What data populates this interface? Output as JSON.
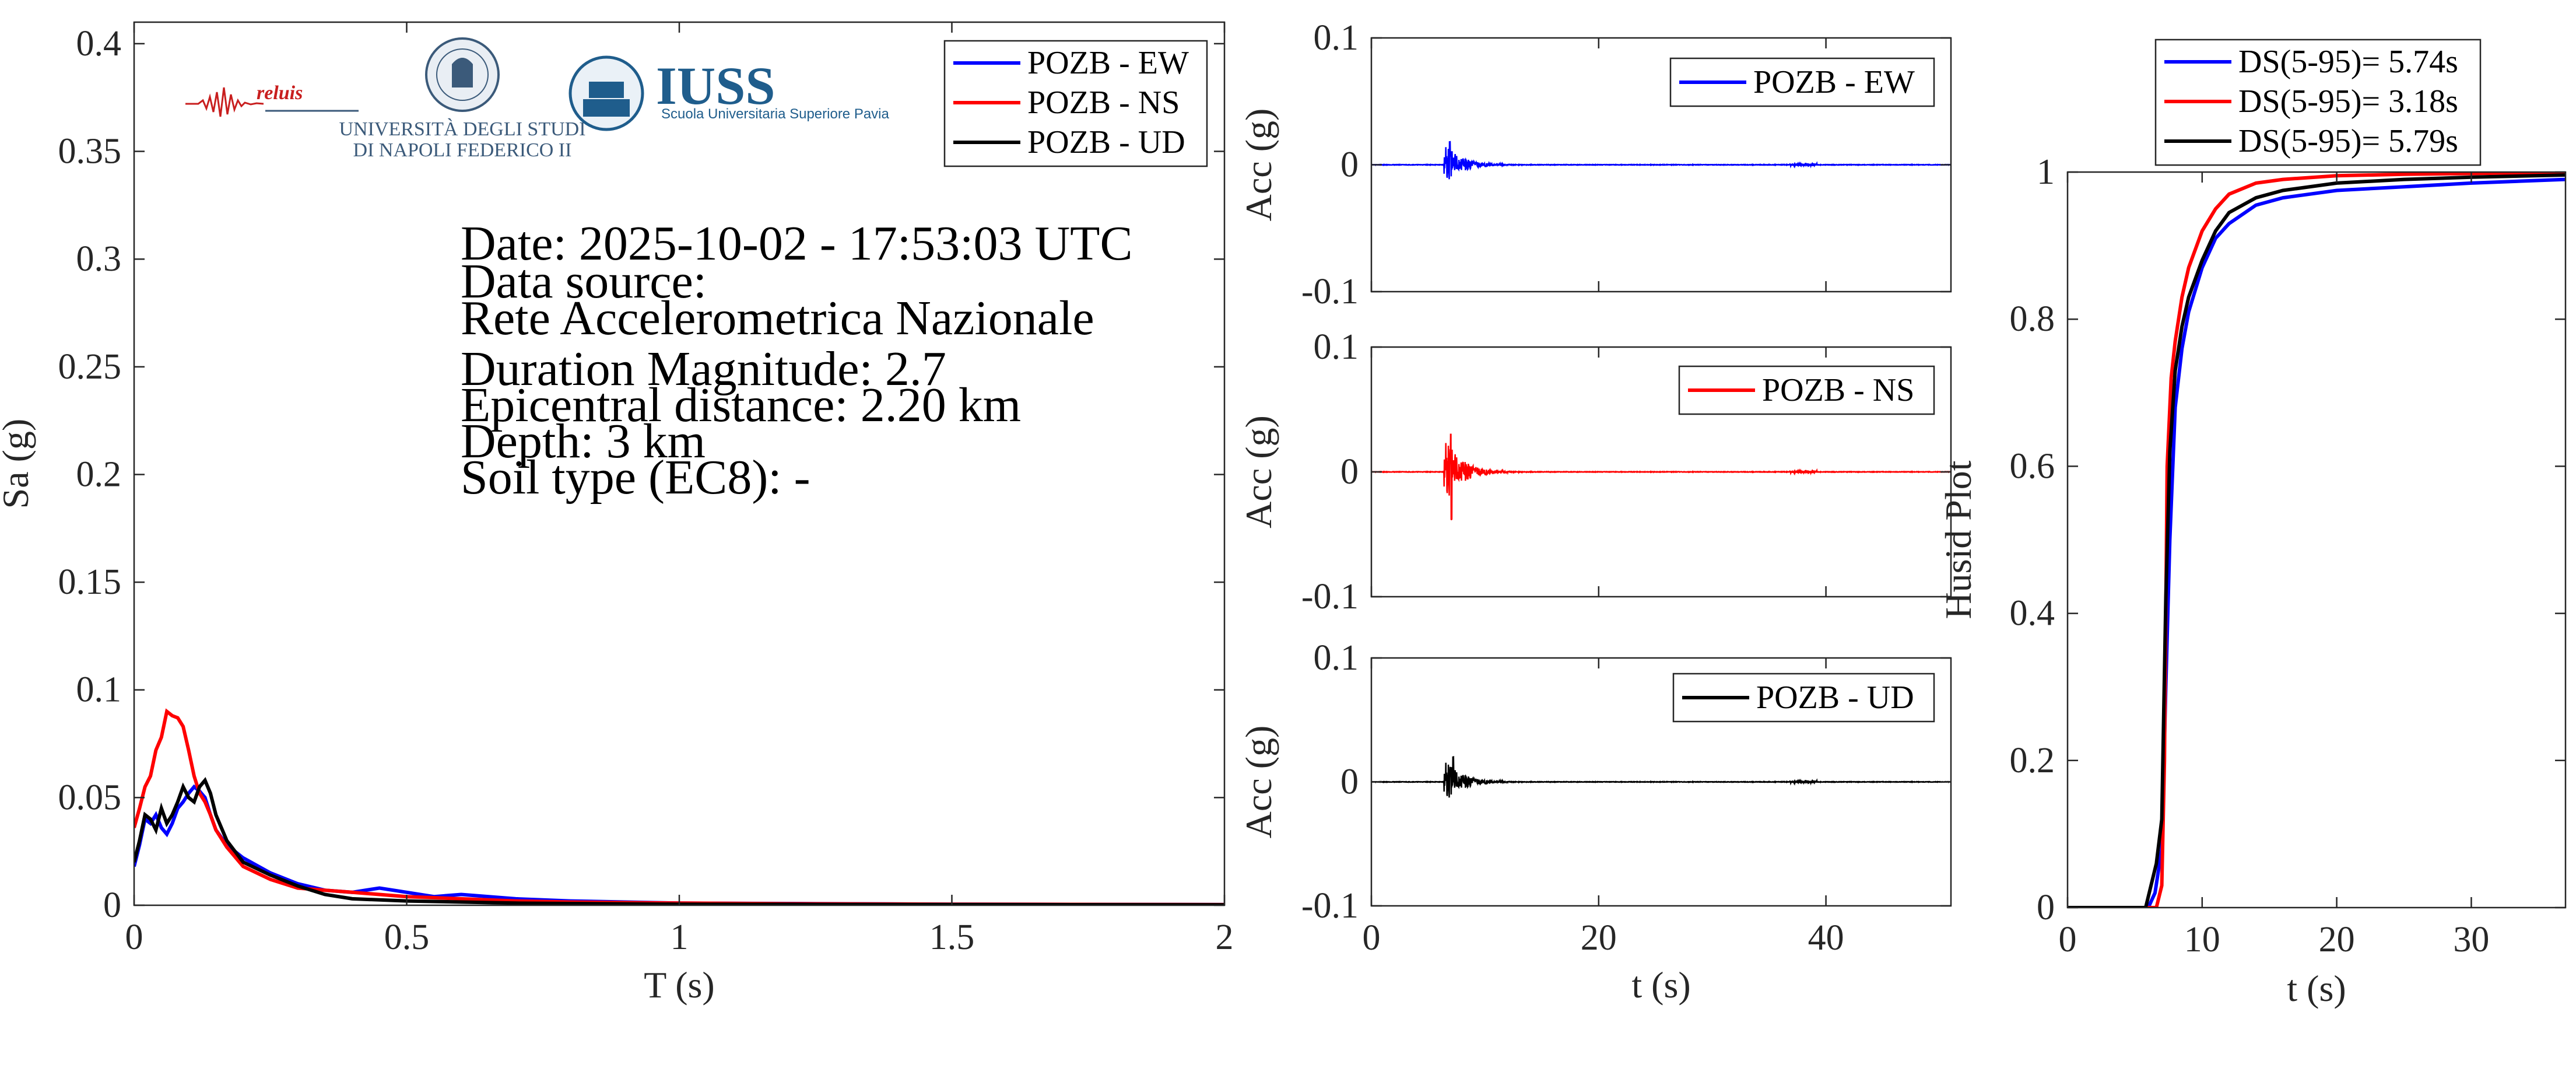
{
  "logos": {
    "reluis": "reluis",
    "unina_line1": "UNIVERSITÀ DEGLI STUDI",
    "unina_line2": "DI NAPOLI FEDERICO II",
    "iuss": "IUSS",
    "iuss_sub": "Scuola Universitaria Superiore Pavia"
  },
  "info": {
    "date": "Date: 2025-10-02 - 17:53:03 UTC",
    "source_label": "Data source:",
    "source": "Rete Accelerometrica Nazionale",
    "magnitude": "Duration Magnitude: 2.7",
    "distance": "Epicentral distance: 2.20 km",
    "depth": "Depth: 3 km",
    "soil": "Soil type (EC8): -"
  },
  "colors": {
    "ew": "#0000ff",
    "ns": "#ff0000",
    "ud": "#000000"
  },
  "chart_data": [
    {
      "id": "spectrum",
      "type": "line",
      "xlabel": "T (s)",
      "ylabel": "Sa (g)",
      "xlim": [
        0,
        2
      ],
      "ylim": [
        0,
        0.41
      ],
      "xticks": [
        0,
        0.5,
        1,
        1.5,
        2
      ],
      "xtick_labels": [
        "0",
        "0.5",
        "1",
        "1.5",
        "2"
      ],
      "yticks": [
        0,
        0.05,
        0.1,
        0.15,
        0.2,
        0.25,
        0.3,
        0.35,
        0.4
      ],
      "ytick_labels": [
        "0",
        "0.05",
        "0.1",
        "0.15",
        "0.2",
        "0.25",
        "0.3",
        "0.35",
        "0.4"
      ],
      "legend_position": "top-right",
      "series": [
        {
          "name": "POZB - EW",
          "color": "#0000ff",
          "x": [
            0,
            0.01,
            0.02,
            0.03,
            0.04,
            0.05,
            0.06,
            0.07,
            0.08,
            0.09,
            0.1,
            0.11,
            0.12,
            0.13,
            0.14,
            0.15,
            0.17,
            0.2,
            0.25,
            0.3,
            0.35,
            0.4,
            0.45,
            0.5,
            0.55,
            0.6,
            0.7,
            0.8,
            1.0,
            1.2,
            1.5,
            2.0
          ],
          "y": [
            0.018,
            0.028,
            0.04,
            0.038,
            0.042,
            0.036,
            0.033,
            0.038,
            0.045,
            0.048,
            0.052,
            0.055,
            0.053,
            0.05,
            0.042,
            0.035,
            0.028,
            0.022,
            0.015,
            0.01,
            0.007,
            0.006,
            0.008,
            0.006,
            0.004,
            0.005,
            0.003,
            0.002,
            0.001,
            0.0008,
            0.0005,
            0.0003
          ]
        },
        {
          "name": "POZB - NS",
          "color": "#ff0000",
          "x": [
            0,
            0.01,
            0.02,
            0.03,
            0.04,
            0.05,
            0.06,
            0.07,
            0.08,
            0.09,
            0.1,
            0.11,
            0.12,
            0.13,
            0.14,
            0.15,
            0.17,
            0.2,
            0.25,
            0.3,
            0.35,
            0.4,
            0.45,
            0.5,
            0.6,
            0.7,
            0.8,
            1.0,
            1.2,
            1.5,
            2.0
          ],
          "y": [
            0.036,
            0.045,
            0.055,
            0.06,
            0.072,
            0.078,
            0.09,
            0.088,
            0.087,
            0.083,
            0.072,
            0.06,
            0.052,
            0.048,
            0.042,
            0.035,
            0.027,
            0.018,
            0.012,
            0.008,
            0.007,
            0.006,
            0.005,
            0.004,
            0.003,
            0.002,
            0.0015,
            0.001,
            0.0007,
            0.0005,
            0.0003
          ]
        },
        {
          "name": "POZB - UD",
          "color": "#000000",
          "x": [
            0,
            0.01,
            0.02,
            0.03,
            0.04,
            0.05,
            0.06,
            0.07,
            0.08,
            0.09,
            0.1,
            0.11,
            0.12,
            0.13,
            0.14,
            0.15,
            0.17,
            0.2,
            0.25,
            0.3,
            0.35,
            0.4,
            0.45,
            0.5,
            0.6,
            0.7,
            0.8,
            1.0,
            1.2,
            1.5,
            2.0
          ],
          "y": [
            0.02,
            0.03,
            0.042,
            0.04,
            0.035,
            0.045,
            0.038,
            0.042,
            0.048,
            0.055,
            0.05,
            0.048,
            0.055,
            0.058,
            0.052,
            0.042,
            0.03,
            0.02,
            0.014,
            0.009,
            0.005,
            0.003,
            0.0025,
            0.002,
            0.0015,
            0.001,
            0.0008,
            0.0005,
            0.0004,
            0.0003,
            0.0002
          ]
        }
      ]
    },
    {
      "id": "acc_ew",
      "type": "line",
      "xlabel": "",
      "ylabel": "Acc (g)",
      "xlim": [
        0,
        51
      ],
      "ylim": [
        -0.1,
        0.1
      ],
      "xticks": [
        0,
        20,
        40
      ],
      "yticks": [
        -0.1,
        0,
        0.1
      ],
      "ytick_labels": [
        "-0.1",
        "0",
        "0.1"
      ],
      "legend_position": "top-right",
      "series": [
        {
          "name": "POZB - EW",
          "color": "#0000ff",
          "duration_s": 51,
          "onset_s": 6.4,
          "peak_t_s": 6.9,
          "peak_g": 0.018,
          "secondary_t_s": 38,
          "secondary_g": 0.002
        }
      ]
    },
    {
      "id": "acc_ns",
      "type": "line",
      "xlabel": "",
      "ylabel": "Acc (g)",
      "xlim": [
        0,
        51
      ],
      "ylim": [
        -0.1,
        0.1
      ],
      "xticks": [
        0,
        20,
        40
      ],
      "yticks": [
        -0.1,
        0,
        0.1
      ],
      "ytick_labels": [
        "-0.1",
        "0",
        "0.1"
      ],
      "legend_position": "top-right",
      "series": [
        {
          "name": "POZB - NS",
          "color": "#ff0000",
          "duration_s": 51,
          "onset_s": 6.4,
          "peak_t_s": 7.0,
          "peak_g": 0.03,
          "trough_g": -0.038,
          "secondary_t_s": 38,
          "secondary_g": 0.002
        }
      ]
    },
    {
      "id": "acc_ud",
      "type": "line",
      "xlabel": "t (s)",
      "ylabel": "Acc (g)",
      "xlim": [
        0,
        51
      ],
      "ylim": [
        -0.1,
        0.1
      ],
      "xticks": [
        0,
        20,
        40
      ],
      "xtick_labels": [
        "0",
        "20",
        "40"
      ],
      "yticks": [
        -0.1,
        0,
        0.1
      ],
      "ytick_labels": [
        "-0.1",
        "0",
        "0.1"
      ],
      "legend_position": "top-right",
      "series": [
        {
          "name": "POZB - UD",
          "color": "#000000",
          "duration_s": 51,
          "onset_s": 6.4,
          "peak_t_s": 7.2,
          "peak_g": 0.02,
          "secondary_t_s": 38,
          "secondary_g": 0.002
        }
      ]
    },
    {
      "id": "husid",
      "type": "line",
      "xlabel": "t (s)",
      "ylabel": "Husid Plot",
      "xlim": [
        0,
        37
      ],
      "ylim": [
        0,
        1
      ],
      "xticks": [
        0,
        10,
        20,
        30
      ],
      "xtick_labels": [
        "0",
        "10",
        "20",
        "30"
      ],
      "yticks": [
        0,
        0.2,
        0.4,
        0.6,
        0.8,
        1
      ],
      "ytick_labels": [
        "0",
        "0.2",
        "0.4",
        "0.6",
        "0.8",
        "1"
      ],
      "legend_position": "top",
      "series": [
        {
          "name": "DS(5-95)= 5.74s",
          "color": "#0000ff",
          "x": [
            0,
            6,
            6.5,
            7,
            7.3,
            7.6,
            8,
            8.5,
            9,
            10,
            11,
            12,
            14,
            16,
            20,
            25,
            30,
            37
          ],
          "y": [
            0,
            0,
            0.02,
            0.08,
            0.3,
            0.5,
            0.68,
            0.76,
            0.81,
            0.87,
            0.91,
            0.93,
            0.955,
            0.965,
            0.975,
            0.98,
            0.985,
            0.99
          ]
        },
        {
          "name": "DS(5-95)= 3.18s",
          "color": "#ff0000",
          "x": [
            0,
            6.6,
            7,
            7.2,
            7.4,
            7.7,
            8,
            8.5,
            9,
            10,
            11,
            12,
            14,
            16,
            20,
            25,
            30,
            37
          ],
          "y": [
            0,
            0,
            0.03,
            0.2,
            0.6,
            0.72,
            0.77,
            0.83,
            0.87,
            0.92,
            0.95,
            0.97,
            0.985,
            0.99,
            0.995,
            0.997,
            0.998,
            1.0
          ]
        },
        {
          "name": "DS(5-95)= 5.79s",
          "color": "#000000",
          "x": [
            0,
            5.8,
            6.2,
            6.6,
            7,
            7.3,
            7.6,
            8,
            8.5,
            9,
            10,
            11,
            12,
            14,
            16,
            20,
            25,
            30,
            37
          ],
          "y": [
            0,
            0,
            0.03,
            0.06,
            0.12,
            0.42,
            0.62,
            0.73,
            0.79,
            0.83,
            0.88,
            0.92,
            0.945,
            0.965,
            0.975,
            0.985,
            0.99,
            0.993,
            0.996
          ]
        }
      ]
    }
  ]
}
